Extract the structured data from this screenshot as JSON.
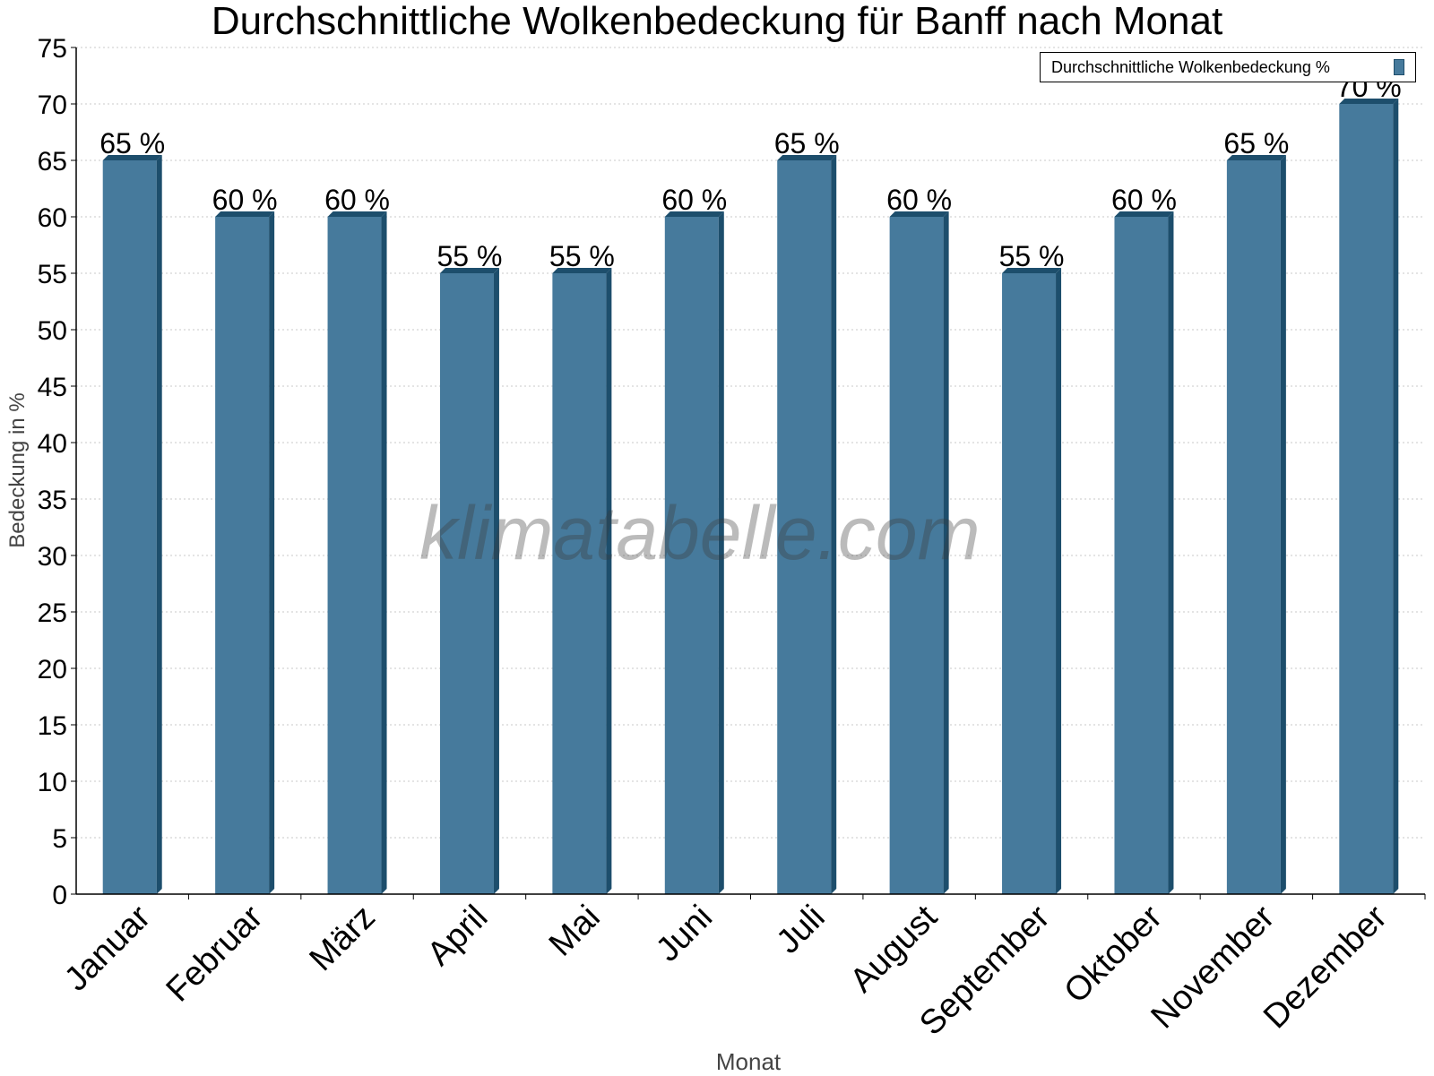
{
  "colors": {
    "bar_face": "#467a9c",
    "bar_side": "#1d4e6c",
    "grid": "#c8c8c8",
    "axis": "#000000",
    "watermark": "#555555"
  },
  "chart_data": {
    "type": "bar",
    "title": "Durchschnittliche Wolkenbedeckung für Banff nach Monat",
    "xlabel": "Monat",
    "ylabel": "Bedeckung in %",
    "categories": [
      "Januar",
      "Februar",
      "März",
      "April",
      "Mai",
      "Juni",
      "Juli",
      "August",
      "September",
      "Oktober",
      "November",
      "Dezember"
    ],
    "series": [
      {
        "name": "Durchschnittliche Wolkenbedeckung %",
        "values": [
          65,
          60,
          60,
          55,
          55,
          60,
          65,
          60,
          55,
          60,
          65,
          70
        ],
        "data_labels": [
          "65 %",
          "60 %",
          "60 %",
          "55 %",
          "55 %",
          "60 %",
          "65 %",
          "60 %",
          "55 %",
          "60 %",
          "65 %",
          "70 %"
        ]
      }
    ],
    "ylim": [
      0,
      75
    ],
    "yticks": [
      0,
      5,
      10,
      15,
      20,
      25,
      30,
      35,
      40,
      45,
      50,
      55,
      60,
      65,
      70,
      75
    ],
    "grid": true,
    "legend_position": "top-right",
    "watermark": "klimatabelle.com"
  }
}
